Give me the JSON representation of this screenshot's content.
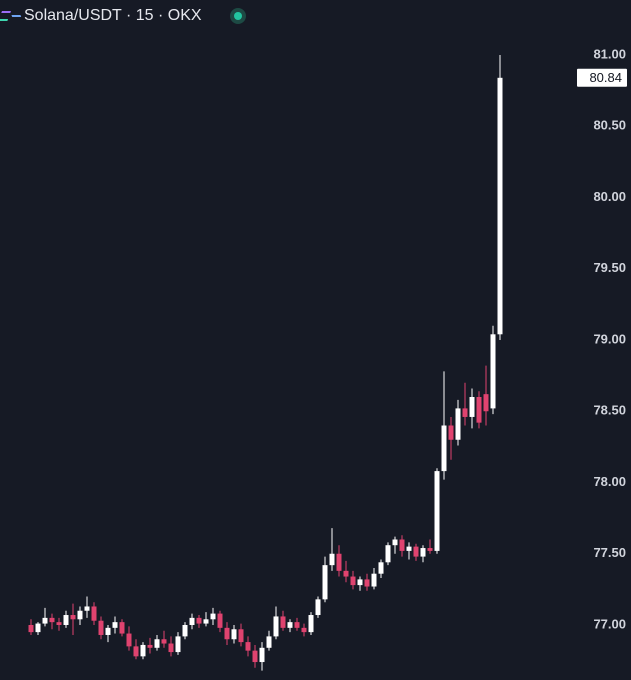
{
  "chart_data": {
    "type": "candlestick",
    "title": "Solana/USDT · 15 · OKX",
    "up_color": "#ffffff",
    "down_color": "#e0436f",
    "ylim": [
      76.614,
      81.386
    ],
    "yticks": [
      {
        "value": 77,
        "label": "77.00"
      },
      {
        "value": 77.5,
        "label": "77.50"
      },
      {
        "value": 78,
        "label": "78.00"
      },
      {
        "value": 78.5,
        "label": "78.50"
      },
      {
        "value": 79,
        "label": "79.00"
      },
      {
        "value": 79.5,
        "label": "79.50"
      },
      {
        "value": 80,
        "label": "80.00"
      },
      {
        "value": 80.5,
        "label": "80.50"
      },
      {
        "value": 81,
        "label": "81.00"
      }
    ],
    "open": [
      77.0,
      76.95,
      77.01,
      77.05,
      77.02,
      77.0,
      77.07,
      77.04,
      77.1,
      77.13,
      77.03,
      76.93,
      76.98,
      77.02,
      76.94,
      76.85,
      76.78,
      76.86,
      76.84,
      76.9,
      76.87,
      76.81,
      76.92,
      77.0,
      77.05,
      77.01,
      77.04,
      77.08,
      76.98,
      76.9,
      76.97,
      76.88,
      76.82,
      76.74,
      76.84,
      76.92,
      77.06,
      76.98,
      77.02,
      76.98,
      76.95,
      77.07,
      77.18,
      77.42,
      77.5,
      77.38,
      77.34,
      77.28,
      77.32,
      77.27,
      77.36,
      77.44,
      77.56,
      77.6,
      77.52,
      77.55,
      77.48,
      77.54,
      77.52,
      78.08,
      78.4,
      78.3,
      78.52,
      78.46,
      78.6,
      78.62,
      78.52,
      79.04
    ],
    "high": [
      77.04,
      77.02,
      77.12,
      77.08,
      77.05,
      77.1,
      77.15,
      77.13,
      77.2,
      77.16,
      77.06,
      77.0,
      77.06,
      77.04,
      76.99,
      76.9,
      76.88,
      76.91,
      76.93,
      76.96,
      76.92,
      76.95,
      77.02,
      77.08,
      77.07,
      77.09,
      77.12,
      77.1,
      77.02,
      77.0,
      77.01,
      76.92,
      76.86,
      76.88,
      76.96,
      77.13,
      77.1,
      77.04,
      77.05,
      77.01,
      77.09,
      77.2,
      77.48,
      77.68,
      77.56,
      77.45,
      77.38,
      77.34,
      77.36,
      77.4,
      77.46,
      77.58,
      77.62,
      77.63,
      77.58,
      77.57,
      77.56,
      77.6,
      78.1,
      78.78,
      78.46,
      78.58,
      78.7,
      78.66,
      78.64,
      78.82,
      79.1,
      81.0
    ],
    "low": [
      76.93,
      76.93,
      76.99,
      76.97,
      76.96,
      76.98,
      76.93,
      77.0,
      77.05,
      77.0,
      76.9,
      76.88,
      76.94,
      76.92,
      76.82,
      76.76,
      76.76,
      76.8,
      76.82,
      76.84,
      76.78,
      76.79,
      76.9,
      76.97,
      76.98,
      76.99,
      77.0,
      76.95,
      76.86,
      76.87,
      76.85,
      76.78,
      76.7,
      76.68,
      76.82,
      76.9,
      76.96,
      76.95,
      76.96,
      76.92,
      76.93,
      77.05,
      77.16,
      77.38,
      77.34,
      77.3,
      77.25,
      77.24,
      77.24,
      77.25,
      77.33,
      77.42,
      77.5,
      77.48,
      77.46,
      77.45,
      77.44,
      77.5,
      77.5,
      78.02,
      78.16,
      78.26,
      78.4,
      78.38,
      78.38,
      78.4,
      78.48,
      79.0
    ],
    "close": [
      76.95,
      77.01,
      77.05,
      77.02,
      77.0,
      77.07,
      77.04,
      77.1,
      77.13,
      77.03,
      76.93,
      76.98,
      77.02,
      76.94,
      76.85,
      76.78,
      76.86,
      76.84,
      76.9,
      76.87,
      76.81,
      76.92,
      77.0,
      77.05,
      77.01,
      77.04,
      77.08,
      76.98,
      76.9,
      76.97,
      76.88,
      76.82,
      76.74,
      76.84,
      76.92,
      77.06,
      76.98,
      77.02,
      76.98,
      76.95,
      77.07,
      77.18,
      77.42,
      77.5,
      77.38,
      77.34,
      77.28,
      77.32,
      77.27,
      77.36,
      77.44,
      77.56,
      77.6,
      77.52,
      77.55,
      77.48,
      77.54,
      77.52,
      78.08,
      78.4,
      78.3,
      78.52,
      78.46,
      78.6,
      78.42,
      78.5,
      79.04,
      80.84
    ]
  }
}
